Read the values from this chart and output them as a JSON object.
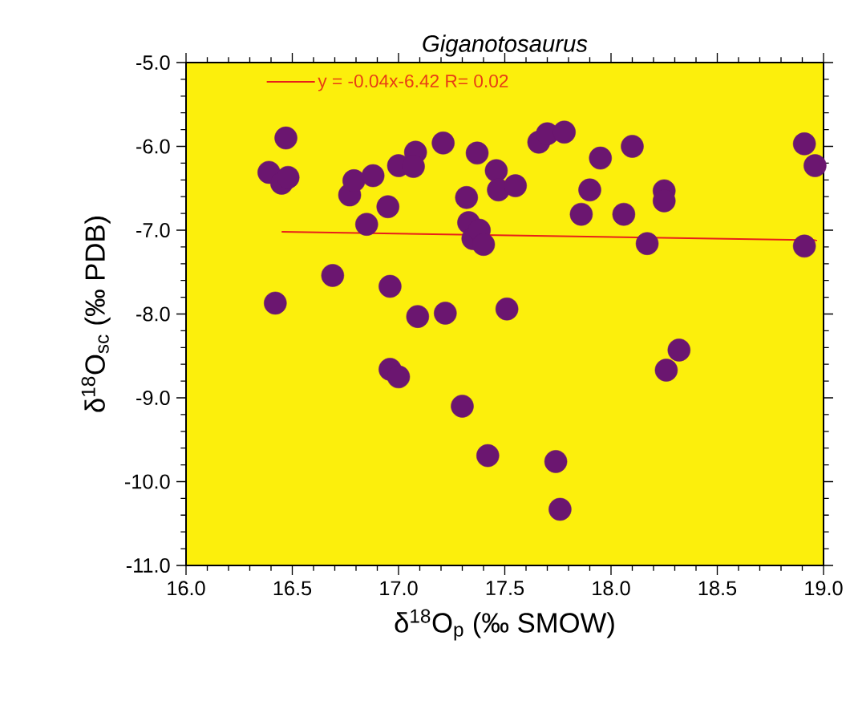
{
  "chart_data": {
    "type": "scatter",
    "title": "Giganotosaurus",
    "xlabel": "δ$^{18}$O$_{p}$ (‰ SMOW)",
    "ylabel": "δ$^{18}$O$_{sc}$ (‰ PDB)",
    "xlim": [
      16.0,
      19.0
    ],
    "ylim": [
      -11.0,
      -5.0
    ],
    "xticks": [
      {
        "value": 16.0,
        "label": "16.0"
      },
      {
        "value": 16.5,
        "label": "16.5"
      },
      {
        "value": 17.0,
        "label": "17.0"
      },
      {
        "value": 17.5,
        "label": "17.5"
      },
      {
        "value": 18.0,
        "label": "18.0"
      },
      {
        "value": 18.5,
        "label": "18.5"
      },
      {
        "value": 19.0,
        "label": "19.0"
      }
    ],
    "yticks": [
      {
        "value": -11.0,
        "label": "-11.0"
      },
      {
        "value": -10.0,
        "label": "-10.0"
      },
      {
        "value": -9.0,
        "label": "-9.0"
      },
      {
        "value": -8.0,
        "label": "-8.0"
      },
      {
        "value": -7.0,
        "label": "-7.0"
      },
      {
        "value": -6.0,
        "label": "-6.0"
      },
      {
        "value": -5.0,
        "label": "-5.0"
      }
    ],
    "marker": "circle",
    "legend": "top left",
    "grid": false,
    "series": [
      {
        "color": "#6b1670",
        "x": [
          16.39,
          16.47,
          16.45,
          16.48,
          16.42,
          16.69,
          16.77,
          16.79,
          16.88,
          16.85,
          16.95,
          16.96,
          16.96,
          17.0,
          17.0,
          17.08,
          17.07,
          17.21,
          17.37,
          17.46,
          17.47,
          17.32,
          17.33,
          17.35,
          17.38,
          17.4,
          17.09,
          17.22,
          17.51,
          17.55,
          17.66,
          17.7,
          17.78,
          17.95,
          18.1,
          17.9,
          17.86,
          18.06,
          18.25,
          18.25,
          18.17,
          18.91,
          18.96,
          18.91,
          18.32,
          18.26,
          17.3,
          17.42,
          17.74,
          17.76
        ],
        "values": [
          -6.31,
          -5.9,
          -6.44,
          -6.37,
          -7.87,
          -7.54,
          -6.58,
          -6.41,
          -6.35,
          -6.93,
          -6.72,
          -7.67,
          -8.66,
          -8.75,
          -6.23,
          -6.07,
          -6.24,
          -5.96,
          -6.08,
          -6.29,
          -6.52,
          -6.61,
          -6.91,
          -7.1,
          -7.0,
          -7.17,
          -8.03,
          -7.99,
          -7.94,
          -6.47,
          -5.95,
          -5.85,
          -5.83,
          -6.14,
          -6.0,
          -6.52,
          -6.81,
          -6.81,
          -6.53,
          -6.65,
          -7.16,
          -5.97,
          -6.23,
          -7.19,
          -8.43,
          -8.67,
          -9.1,
          -9.69,
          -9.76,
          -10.33
        ]
      },
      {
        "type": "line",
        "name": "y = -0.04x-6.42   R= 0.02",
        "color": "#e8201a",
        "marker": "none",
        "x": [
          16.45,
          18.97
        ],
        "values": [
          -7.02,
          -7.12
        ]
      }
    ]
  }
}
